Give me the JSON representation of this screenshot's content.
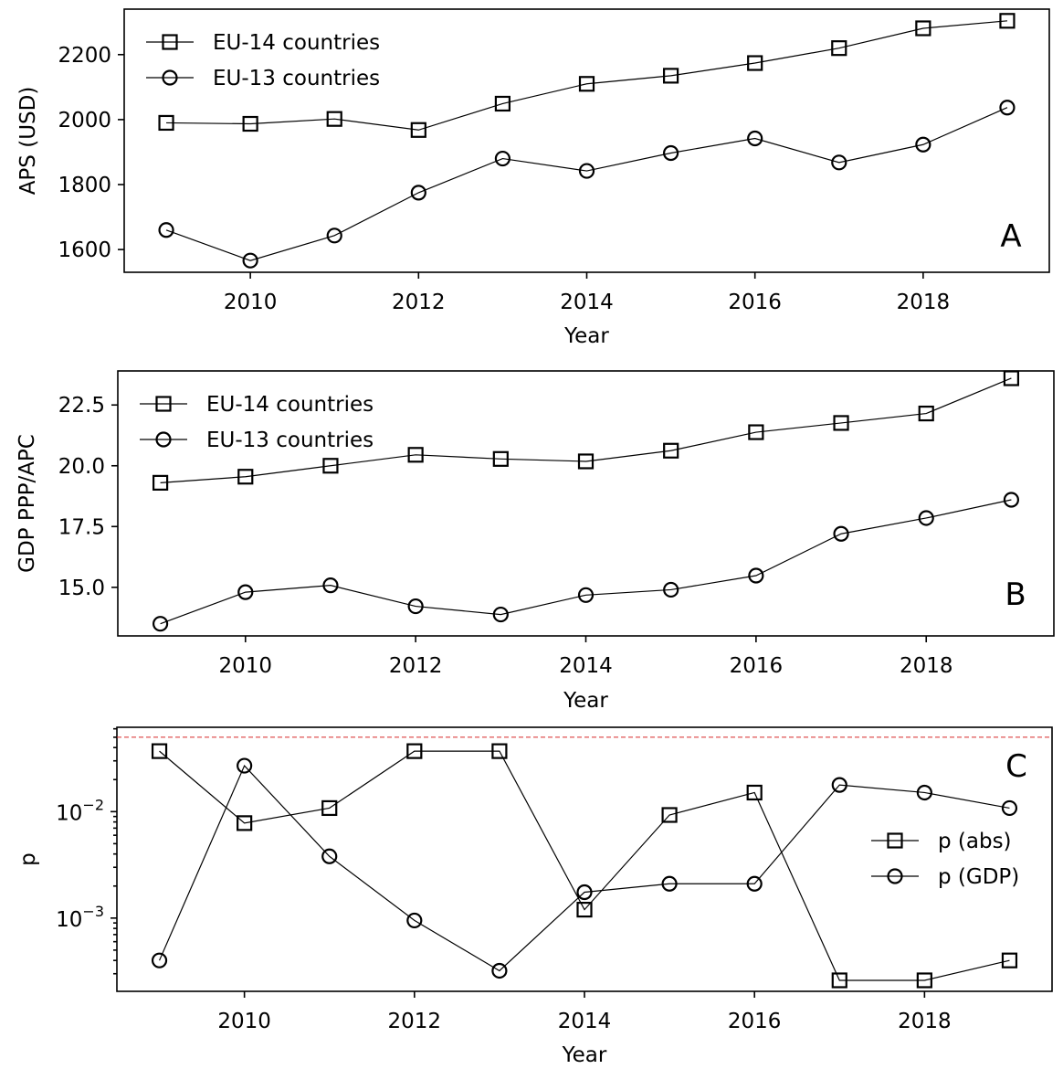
{
  "chart_data": [
    {
      "type": "line",
      "panel_label": "A",
      "xlabel": "Year",
      "ylabel": "APS (USD)",
      "x": [
        2009,
        2010,
        2011,
        2012,
        2013,
        2014,
        2015,
        2016,
        2017,
        2018,
        2019
      ],
      "xlim": [
        2008.5,
        2019.5
      ],
      "xticks": [
        2010,
        2012,
        2014,
        2016,
        2018
      ],
      "ylim": [
        1530,
        2340
      ],
      "yticks": [
        1600,
        1800,
        2000,
        2200
      ],
      "legend_position": "upper left",
      "series": [
        {
          "name": "EU-14 countries",
          "marker": "square",
          "values": [
            1990,
            1987,
            2002,
            1968,
            2049,
            2110,
            2135,
            2174,
            2220,
            2281,
            2304
          ]
        },
        {
          "name": "EU-13 countries",
          "marker": "circle",
          "values": [
            1660,
            1566,
            1643,
            1775,
            1880,
            1842,
            1897,
            1942,
            1868,
            1923,
            2037
          ]
        }
      ]
    },
    {
      "type": "line",
      "panel_label": "B",
      "xlabel": "Year",
      "ylabel": "GDP PPP/APC",
      "x": [
        2009,
        2010,
        2011,
        2012,
        2013,
        2014,
        2015,
        2016,
        2017,
        2018,
        2019
      ],
      "xlim": [
        2008.5,
        2019.5
      ],
      "xticks": [
        2010,
        2012,
        2014,
        2016,
        2018
      ],
      "ylim": [
        13.0,
        23.9
      ],
      "yticks": [
        "15.0",
        "17.5",
        "20.0",
        "22.5"
      ],
      "legend_position": "upper left",
      "series": [
        {
          "name": "EU-14 countries",
          "marker": "square",
          "values": [
            19.3,
            19.55,
            20.0,
            20.45,
            20.28,
            20.18,
            20.62,
            21.38,
            21.76,
            22.15,
            23.6
          ]
        },
        {
          "name": "EU-13 countries",
          "marker": "circle",
          "values": [
            13.5,
            14.8,
            15.08,
            14.22,
            13.88,
            14.68,
            14.9,
            15.48,
            17.2,
            17.85,
            18.6
          ]
        }
      ]
    },
    {
      "type": "line",
      "panel_label": "C",
      "xlabel": "Year",
      "ylabel": "p",
      "yscale": "log",
      "x": [
        2009,
        2010,
        2011,
        2012,
        2013,
        2014,
        2015,
        2016,
        2017,
        2018,
        2019
      ],
      "xlim": [
        2008.5,
        2019.5
      ],
      "xticks": [
        2010,
        2012,
        2014,
        2016,
        2018
      ],
      "ylim": [
        0.000205,
        0.062
      ],
      "yticks": [
        {
          "value": 0.01,
          "base": "10",
          "exp": "−2"
        },
        {
          "value": 0.001,
          "base": "10",
          "exp": "−3"
        }
      ],
      "reference_line": {
        "y": 0.05,
        "color": "#d62728",
        "style": "dashed"
      },
      "legend_position": "center right",
      "series": [
        {
          "name": "p (abs)",
          "marker": "square",
          "values": [
            0.037,
            0.0078,
            0.0108,
            0.037,
            0.037,
            0.0012,
            0.0093,
            0.0151,
            0.00026,
            0.00026,
            0.0004
          ]
        },
        {
          "name": "p (GDP)",
          "marker": "circle",
          "values": [
            0.0004,
            0.027,
            0.0038,
            0.00095,
            0.00032,
            0.00175,
            0.0021,
            0.0021,
            0.0178,
            0.0151,
            0.0108
          ]
        }
      ]
    }
  ]
}
